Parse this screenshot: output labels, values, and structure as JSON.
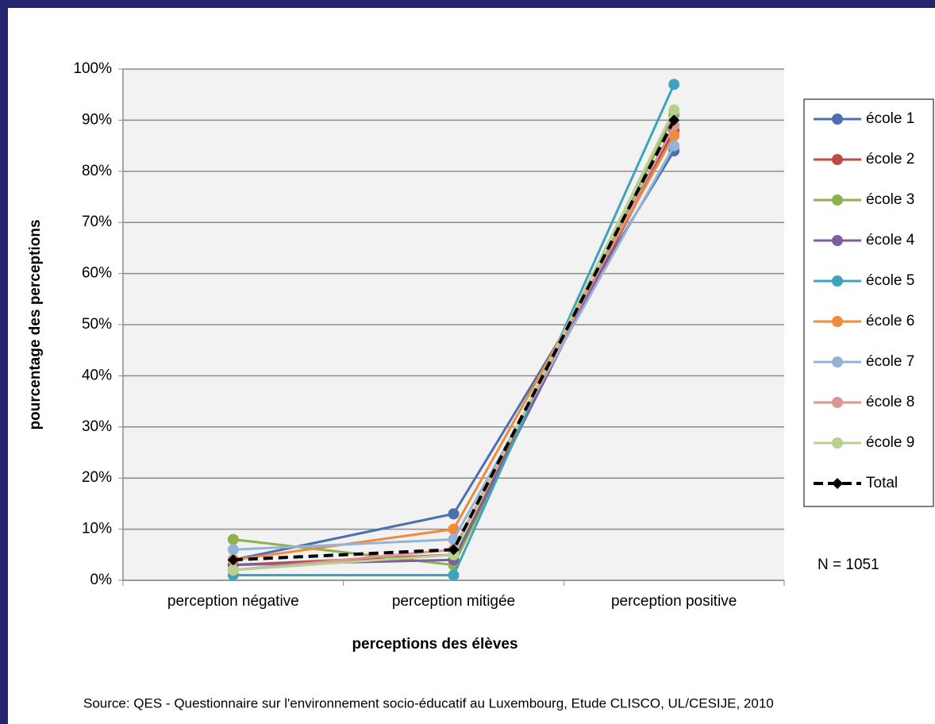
{
  "chart_data": {
    "type": "line",
    "y_label": "pourcentage des perceptions",
    "x_label": "perceptions des élèves",
    "annotation": "N = 1051",
    "source": "Source:  QES - Questionnaire sur l'environnement socio-éducatif au Luxembourg, Etude CLISCO, UL/CESIJE, 2010",
    "categories": [
      "perception négative",
      "perception mitigée",
      "perception positive"
    ],
    "series": [
      {
        "name": "école 1",
        "color": "#4a70b0",
        "values": [
          4,
          13,
          84
        ]
      },
      {
        "name": "école 2",
        "color": "#be4b48",
        "values": [
          3,
          5,
          88
        ]
      },
      {
        "name": "école 3",
        "color": "#8fb04e",
        "values": [
          8,
          3,
          91
        ]
      },
      {
        "name": "école 4",
        "color": "#7d5fa0",
        "values": [
          3,
          4,
          89
        ]
      },
      {
        "name": "école 5",
        "color": "#3fa3bd",
        "values": [
          1,
          1,
          97
        ]
      },
      {
        "name": "école 6",
        "color": "#f08a3c",
        "values": [
          4,
          10,
          87
        ]
      },
      {
        "name": "école 7",
        "color": "#95b3d7",
        "values": [
          6,
          8,
          85
        ]
      },
      {
        "name": "école 8",
        "color": "#d99694",
        "values": [
          2,
          6,
          89
        ]
      },
      {
        "name": "école 9",
        "color": "#b8d08e",
        "values": [
          2,
          5,
          92
        ]
      },
      {
        "name": "Total",
        "color": "#000000",
        "dashed": true,
        "marker": "diamond",
        "values": [
          4,
          6,
          90
        ]
      }
    ],
    "ylim": [
      0,
      100
    ],
    "yticks": [
      {
        "value": 0,
        "label": "0%"
      },
      {
        "value": 10,
        "label": "10%"
      },
      {
        "value": 20,
        "label": "20%"
      },
      {
        "value": 30,
        "label": "30%"
      },
      {
        "value": 40,
        "label": "40%"
      },
      {
        "value": 50,
        "label": "50%"
      },
      {
        "value": 60,
        "label": "60%"
      },
      {
        "value": 70,
        "label": "70%"
      },
      {
        "value": 80,
        "label": "80%"
      },
      {
        "value": 90,
        "label": "90%"
      },
      {
        "value": 100,
        "label": "100%"
      }
    ],
    "grid": true,
    "legend": "right"
  }
}
